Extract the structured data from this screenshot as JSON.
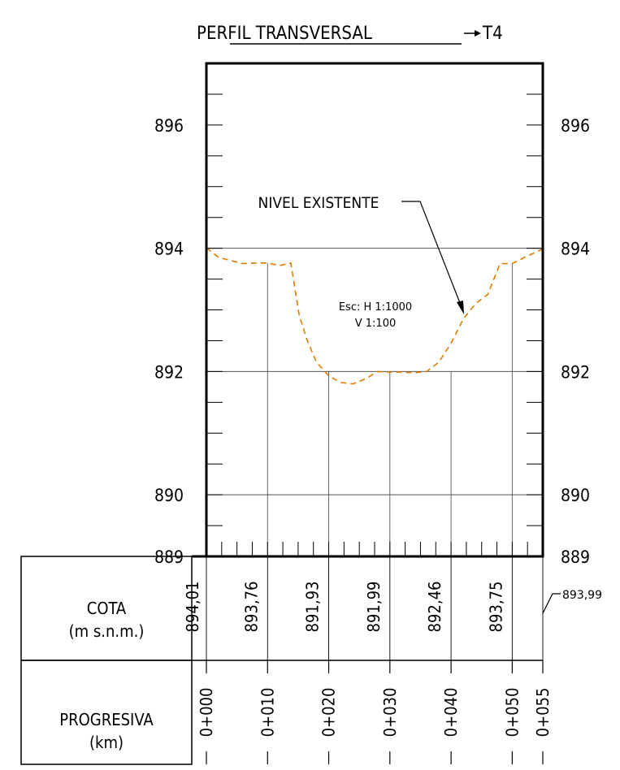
{
  "title": {
    "text": "PERFIL TRANSVERSAL",
    "suffix": "T4"
  },
  "annotations": {
    "nivel_existente": "NIVEL EXISTENTE",
    "scale_h": "Esc: H 1:1000",
    "scale_v": "V 1:100"
  },
  "table": {
    "cota_label_1": "COTA",
    "cota_label_2": "(m s.n.m.)",
    "prog_label_1": "PROGRESIVA",
    "prog_label_2": "(km)",
    "end_value": "893,99"
  },
  "colors": {
    "profile": "#e07b00",
    "frame": "#000000",
    "grid": "#555555"
  },
  "chart_data": {
    "type": "line",
    "title": "PERFIL TRANSVERSAL→T4",
    "xlabel": "PROGRESIVA (km)",
    "ylabel": "COTA (m s.n.m.)",
    "xlim": [
      0,
      55
    ],
    "ylim": [
      889,
      897
    ],
    "y_tick_labels": [
      "889",
      "890",
      "892",
      "894",
      "896"
    ],
    "y_ticks": [
      889,
      890,
      892,
      894,
      896
    ],
    "x_ticks": [
      0,
      10,
      20,
      30,
      40,
      50,
      55
    ],
    "x_tick_labels": [
      "0+000",
      "0+010",
      "0+020",
      "0+030",
      "0+040",
      "0+050",
      "0+055"
    ],
    "cota_values": [
      "894,01",
      "893,76",
      "891,93",
      "891,99",
      "892,46",
      "893,75"
    ],
    "series": [
      {
        "name": "NIVEL EXISTENTE",
        "style": "dashed",
        "x": [
          0,
          2,
          4,
          6,
          8,
          10,
          12,
          13.8,
          15.2,
          16.5,
          18,
          20,
          22,
          24,
          26,
          28,
          30,
          32,
          34,
          36,
          38,
          40,
          42,
          44,
          46,
          48,
          50,
          52,
          55
        ],
        "y": [
          894.01,
          893.85,
          893.8,
          893.75,
          893.76,
          893.76,
          893.72,
          893.76,
          892.9,
          892.5,
          892.15,
          891.93,
          891.82,
          891.8,
          891.88,
          892.0,
          891.99,
          891.99,
          891.98,
          892.0,
          892.15,
          892.46,
          892.85,
          893.1,
          893.25,
          893.75,
          893.75,
          893.85,
          893.99
        ]
      }
    ]
  }
}
